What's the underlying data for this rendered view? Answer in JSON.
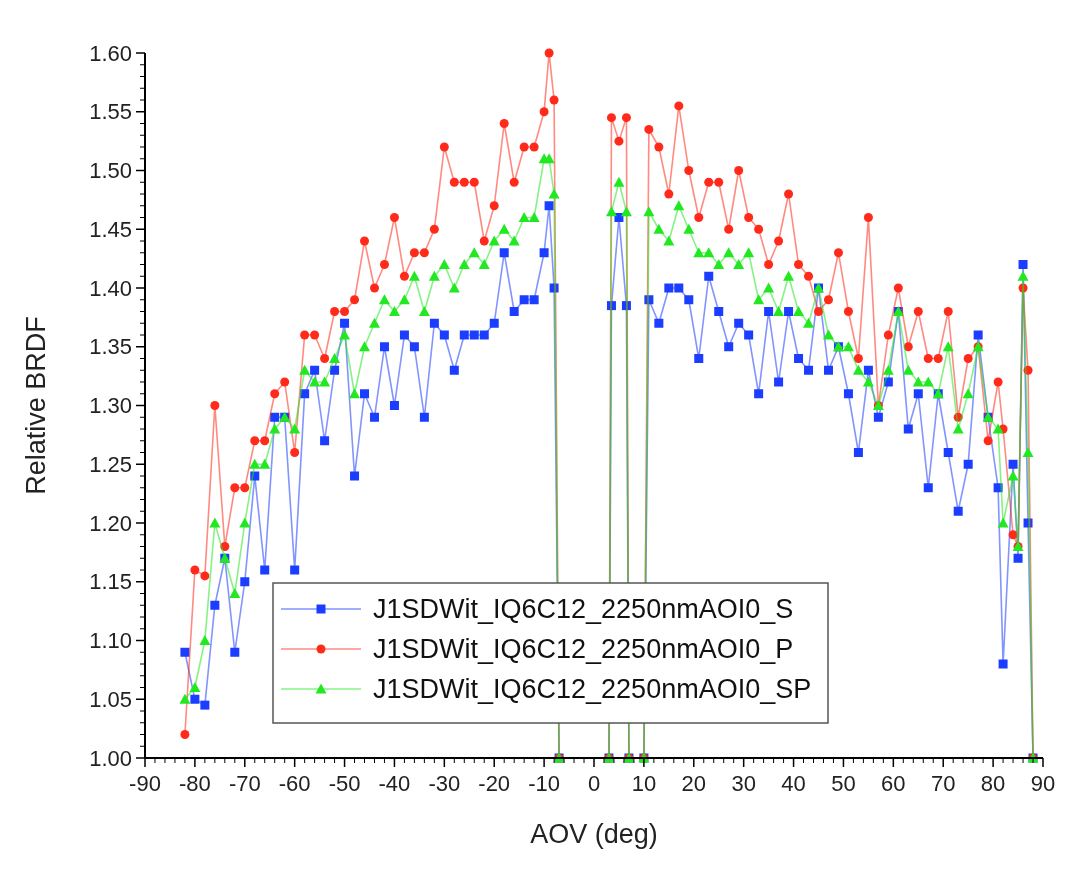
{
  "chart_data": {
    "type": "line",
    "xlabel": "AOV (deg)",
    "ylabel": "Relative BRDF",
    "x": [
      -82,
      -80,
      -78,
      -76,
      -74,
      -72,
      -70,
      -68,
      -66,
      -64,
      -62,
      -60,
      -58,
      -56,
      -54,
      -52,
      -50,
      -48,
      -46,
      -44,
      -42,
      -40,
      -38,
      -36,
      -34,
      -32,
      -30,
      -28,
      -26,
      -24,
      -22,
      -20,
      -18,
      -16,
      -14,
      -12,
      -10,
      -9,
      -8,
      -7,
      3,
      3.5,
      5,
      6.5,
      7,
      10,
      11,
      13,
      15,
      17,
      19,
      21,
      23,
      25,
      27,
      29,
      31,
      33,
      35,
      37,
      39,
      41,
      43,
      45,
      47,
      49,
      51,
      53,
      55,
      57,
      59,
      61,
      63,
      65,
      67,
      69,
      71,
      73,
      75,
      77,
      79,
      81,
      82,
      84,
      85,
      86,
      87,
      88
    ],
    "series": [
      {
        "name": "J1SDWit_IQ6C12_2250nmAOI0_S",
        "color": "#1a3dff",
        "marker": "square",
        "values": [
          1.09,
          1.05,
          1.045,
          1.13,
          1.17,
          1.09,
          1.15,
          1.24,
          1.16,
          1.29,
          1.29,
          1.16,
          1.31,
          1.33,
          1.27,
          1.33,
          1.37,
          1.24,
          1.31,
          1.29,
          1.35,
          1.3,
          1.36,
          1.35,
          1.29,
          1.37,
          1.36,
          1.33,
          1.36,
          1.36,
          1.36,
          1.37,
          1.43,
          1.38,
          1.39,
          1.39,
          1.43,
          1.47,
          1.4,
          1.0,
          1.0,
          1.385,
          1.46,
          1.385,
          1.0,
          1.0,
          1.39,
          1.37,
          1.4,
          1.4,
          1.39,
          1.34,
          1.41,
          1.38,
          1.35,
          1.37,
          1.36,
          1.31,
          1.38,
          1.32,
          1.38,
          1.34,
          1.33,
          1.4,
          1.33,
          1.35,
          1.31,
          1.26,
          1.33,
          1.29,
          1.32,
          1.38,
          1.28,
          1.31,
          1.23,
          1.31,
          1.26,
          1.21,
          1.25,
          1.36,
          1.29,
          1.23,
          1.08,
          1.25,
          1.17,
          1.42,
          1.2,
          1.0
        ]
      },
      {
        "name": "J1SDWit_IQ6C12_2250nmAOI0_P",
        "color": "#ff2a1a",
        "marker": "circle",
        "values": [
          1.02,
          1.16,
          1.155,
          1.3,
          1.18,
          1.23,
          1.23,
          1.27,
          1.27,
          1.31,
          1.32,
          1.26,
          1.36,
          1.36,
          1.34,
          1.38,
          1.38,
          1.39,
          1.44,
          1.4,
          1.42,
          1.46,
          1.41,
          1.43,
          1.43,
          1.45,
          1.52,
          1.49,
          1.49,
          1.49,
          1.44,
          1.47,
          1.54,
          1.49,
          1.52,
          1.52,
          1.55,
          1.6,
          1.56,
          1.0,
          1.0,
          1.545,
          1.525,
          1.545,
          1.0,
          1.0,
          1.535,
          1.52,
          1.48,
          1.555,
          1.5,
          1.46,
          1.49,
          1.49,
          1.45,
          1.5,
          1.46,
          1.45,
          1.42,
          1.44,
          1.48,
          1.42,
          1.41,
          1.38,
          1.39,
          1.43,
          1.38,
          1.34,
          1.46,
          1.3,
          1.36,
          1.4,
          1.35,
          1.38,
          1.34,
          1.34,
          1.38,
          1.29,
          1.34,
          1.35,
          1.27,
          1.32,
          1.28,
          1.19,
          1.18,
          1.4,
          1.33,
          1.0
        ]
      },
      {
        "name": "J1SDWit_IQ6C12_2250nmAOI0_SP",
        "color": "#22e822",
        "marker": "triangle",
        "values": [
          1.05,
          1.06,
          1.1,
          1.2,
          1.17,
          1.14,
          1.2,
          1.25,
          1.25,
          1.28,
          1.29,
          1.28,
          1.33,
          1.32,
          1.32,
          1.34,
          1.36,
          1.31,
          1.35,
          1.37,
          1.39,
          1.38,
          1.39,
          1.41,
          1.38,
          1.41,
          1.42,
          1.4,
          1.42,
          1.43,
          1.42,
          1.44,
          1.45,
          1.44,
          1.46,
          1.46,
          1.51,
          1.51,
          1.48,
          1.0,
          1.0,
          1.465,
          1.49,
          1.465,
          1.0,
          1.0,
          1.465,
          1.45,
          1.44,
          1.47,
          1.45,
          1.43,
          1.43,
          1.42,
          1.43,
          1.42,
          1.43,
          1.39,
          1.4,
          1.38,
          1.41,
          1.38,
          1.37,
          1.4,
          1.36,
          1.35,
          1.35,
          1.33,
          1.32,
          1.3,
          1.33,
          1.38,
          1.33,
          1.32,
          1.32,
          1.31,
          1.35,
          1.28,
          1.31,
          1.35,
          1.29,
          1.28,
          1.2,
          1.24,
          1.18,
          1.41,
          1.26,
          1.0
        ]
      }
    ],
    "xlim": [
      -90,
      90
    ],
    "xticks": [
      -90,
      -80,
      -70,
      -60,
      -50,
      -40,
      -30,
      -20,
      -10,
      0,
      10,
      20,
      30,
      40,
      50,
      60,
      70,
      80,
      90
    ],
    "ylim": [
      1.0,
      1.6
    ],
    "yticks": [
      {
        "value": 1.0,
        "label": "1.00"
      },
      {
        "value": 1.05,
        "label": "1.05"
      },
      {
        "value": 1.1,
        "label": "1.10"
      },
      {
        "value": 1.15,
        "label": "1.15"
      },
      {
        "value": 1.2,
        "label": "1.20"
      },
      {
        "value": 1.25,
        "label": "1.25"
      },
      {
        "value": 1.3,
        "label": "1.30"
      },
      {
        "value": 1.35,
        "label": "1.35"
      },
      {
        "value": 1.4,
        "label": "1.40"
      },
      {
        "value": 1.45,
        "label": "1.45"
      },
      {
        "value": 1.5,
        "label": "1.50"
      },
      {
        "value": 1.55,
        "label": "1.55"
      },
      {
        "value": 1.6,
        "label": "1.60"
      }
    ],
    "grid": false,
    "legend": "bottom",
    "line_style": "solid"
  }
}
